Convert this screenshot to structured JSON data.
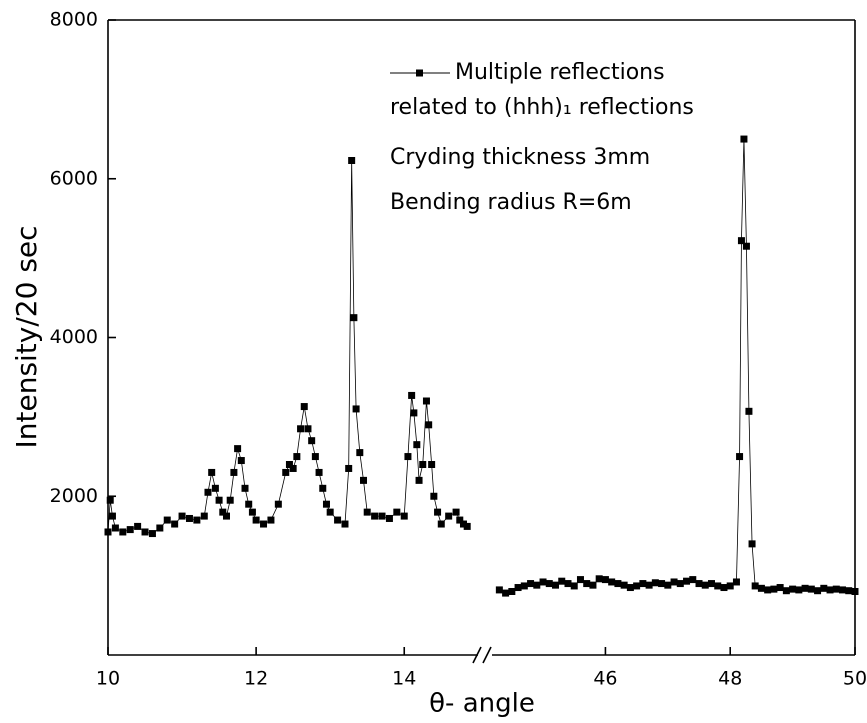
{
  "chart_data": {
    "type": "line",
    "xlabel": "θ- angle",
    "ylabel": "Intensity/20 sec",
    "ylim": [
      0,
      8000
    ],
    "yticks": [
      2000,
      4000,
      6000,
      8000
    ],
    "series": [
      {
        "name": "Multiple reflections",
        "color": "#000000"
      }
    ],
    "annotations": [
      "related to (hhh)₁ reflections",
      "Cryding thickness 3mm",
      "Bending radius R=6m"
    ],
    "panels": [
      {
        "xlim": [
          10,
          15.05
        ],
        "xticks": [
          10,
          12,
          14
        ],
        "x": [
          10.0,
          10.03,
          10.06,
          10.1,
          10.2,
          10.3,
          10.4,
          10.5,
          10.6,
          10.7,
          10.8,
          10.9,
          11.0,
          11.1,
          11.2,
          11.3,
          11.35,
          11.4,
          11.45,
          11.5,
          11.55,
          11.6,
          11.65,
          11.7,
          11.75,
          11.8,
          11.85,
          11.9,
          11.95,
          12.0,
          12.1,
          12.2,
          12.3,
          12.4,
          12.45,
          12.5,
          12.55,
          12.6,
          12.65,
          12.7,
          12.75,
          12.8,
          12.85,
          12.9,
          12.95,
          13.0,
          13.1,
          13.2,
          13.25,
          13.29,
          13.32,
          13.35,
          13.4,
          13.45,
          13.5,
          13.6,
          13.7,
          13.8,
          13.9,
          14.0,
          14.05,
          14.1,
          14.13,
          14.17,
          14.2,
          14.25,
          14.3,
          14.33,
          14.37,
          14.4,
          14.45,
          14.5,
          14.6,
          14.7,
          14.75,
          14.8,
          14.85
        ],
        "values": [
          1550,
          1950,
          1750,
          1600,
          1550,
          1580,
          1620,
          1550,
          1530,
          1600,
          1700,
          1650,
          1750,
          1720,
          1700,
          1750,
          2050,
          2300,
          2100,
          1950,
          1800,
          1750,
          1950,
          2300,
          2600,
          2450,
          2100,
          1900,
          1800,
          1700,
          1650,
          1700,
          1900,
          2300,
          2400,
          2350,
          2500,
          2850,
          3130,
          2850,
          2700,
          2500,
          2300,
          2100,
          1900,
          1800,
          1700,
          1650,
          2350,
          6230,
          4250,
          3100,
          2550,
          2200,
          1800,
          1750,
          1750,
          1720,
          1800,
          1750,
          2500,
          3270,
          3050,
          2650,
          2200,
          2400,
          3200,
          2900,
          2400,
          2000,
          1800,
          1650,
          1750,
          1800,
          1700,
          1650,
          1620
        ]
      },
      {
        "xlim": [
          44.15,
          50
        ],
        "xticks": [
          46,
          48,
          50
        ],
        "x": [
          44.3,
          44.4,
          44.5,
          44.6,
          44.7,
          44.8,
          44.9,
          45.0,
          45.1,
          45.2,
          45.3,
          45.4,
          45.5,
          45.6,
          45.7,
          45.8,
          45.9,
          46.0,
          46.1,
          46.2,
          46.3,
          46.4,
          46.5,
          46.6,
          46.7,
          46.8,
          46.9,
          47.0,
          47.1,
          47.2,
          47.3,
          47.4,
          47.5,
          47.6,
          47.7,
          47.8,
          47.9,
          48.0,
          48.1,
          48.15,
          48.18,
          48.22,
          48.26,
          48.3,
          48.35,
          48.4,
          48.5,
          48.6,
          48.7,
          48.8,
          48.9,
          49.0,
          49.1,
          49.2,
          49.3,
          49.4,
          49.5,
          49.6,
          49.7,
          49.8,
          49.9,
          50.0
        ],
        "values": [
          820,
          780,
          800,
          850,
          870,
          900,
          880,
          920,
          900,
          880,
          930,
          900,
          870,
          950,
          900,
          880,
          960,
          950,
          920,
          900,
          880,
          850,
          870,
          900,
          880,
          910,
          900,
          880,
          920,
          900,
          930,
          950,
          900,
          880,
          900,
          870,
          850,
          870,
          920,
          2500,
          5220,
          6500,
          5150,
          3070,
          1400,
          870,
          840,
          820,
          830,
          850,
          810,
          830,
          820,
          840,
          830,
          810,
          840,
          820,
          830,
          820,
          810,
          800
        ]
      }
    ]
  }
}
